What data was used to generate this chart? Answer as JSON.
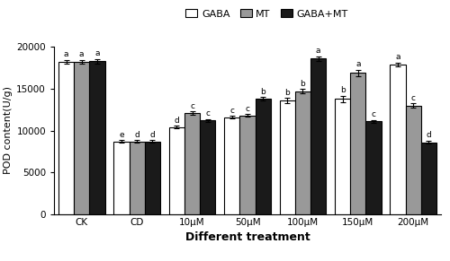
{
  "categories": [
    "CK",
    "CD",
    "10μM",
    "50μM",
    "100μM",
    "150μM",
    "200μM"
  ],
  "gaba_values": [
    18200,
    8700,
    10400,
    11600,
    13600,
    13800,
    17900
  ],
  "mt_values": [
    18200,
    8700,
    12100,
    11800,
    14700,
    16900,
    13000
  ],
  "gabamt_values": [
    18300,
    8700,
    11200,
    13800,
    18600,
    11100,
    8600
  ],
  "gaba_errors": [
    250,
    180,
    180,
    180,
    280,
    380,
    250
  ],
  "mt_errors": [
    250,
    130,
    180,
    180,
    280,
    380,
    280
  ],
  "gabamt_errors": [
    280,
    130,
    180,
    180,
    280,
    180,
    180
  ],
  "gaba_labels": [
    "a",
    "e",
    "d",
    "c",
    "b",
    "b",
    "a"
  ],
  "mt_labels": [
    "a",
    "d",
    "c",
    "c",
    "b",
    "a",
    "c"
  ],
  "gabamt_labels": [
    "a",
    "d",
    "c",
    "b",
    "a",
    "c",
    "d"
  ],
  "ylabel": "POD content(U/g)",
  "xlabel": "Different treatment",
  "ylim": [
    0,
    20000
  ],
  "yticks": [
    0,
    5000,
    10000,
    15000,
    20000
  ],
  "bar_width": 0.28,
  "colors": {
    "gaba": "#ffffff",
    "mt": "#999999",
    "gabamt": "#1a1a1a"
  },
  "edgecolor": "#000000",
  "legend_labels": [
    "GABA",
    "MT",
    "GABA+MT"
  ],
  "figsize": [
    5.0,
    2.91
  ],
  "dpi": 100
}
